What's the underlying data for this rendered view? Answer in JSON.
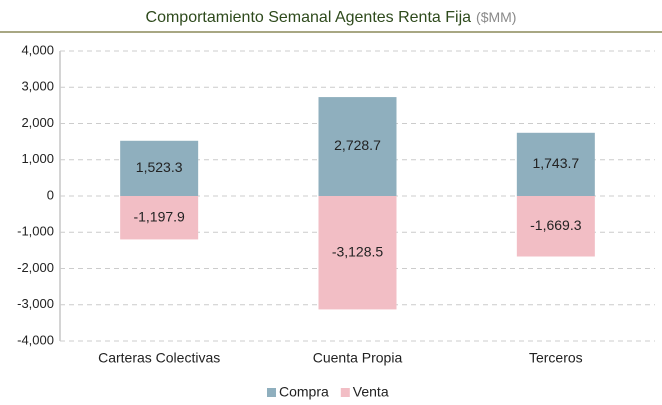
{
  "chart_data": {
    "type": "bar",
    "title": "Comportamiento Semanal Agentes Renta Fija",
    "subtitle": "($MM)",
    "categories": [
      "Carteras Colectivas",
      "Cuenta Propia",
      "Terceros"
    ],
    "series": [
      {
        "name": "Compra",
        "color": "#8fafbe",
        "values": [
          1523.3,
          2728.7,
          1743.7
        ],
        "value_labels": [
          "1,523.3",
          "2,728.7",
          "1,743.7"
        ]
      },
      {
        "name": "Venta",
        "color": "#f2bec5",
        "values": [
          -1197.9,
          -3128.5,
          -1669.3
        ],
        "value_labels": [
          "-1,197.9",
          "-3,128.5",
          "-1,669.3"
        ]
      }
    ],
    "ylim": [
      -4000,
      4000
    ],
    "yticks": [
      {
        "value": -4000,
        "label": "-4,000"
      },
      {
        "value": -3000,
        "label": "-3,000"
      },
      {
        "value": -2000,
        "label": "-2,000"
      },
      {
        "value": -1000,
        "label": "-1,000"
      },
      0,
      {
        "value": 1000,
        "label": "1,000"
      },
      {
        "value": 2000,
        "label": "2,000"
      },
      {
        "value": 3000,
        "label": "3,000"
      },
      {
        "value": 4000,
        "label": "4,000"
      }
    ],
    "grid": true,
    "legend": "bottom"
  }
}
